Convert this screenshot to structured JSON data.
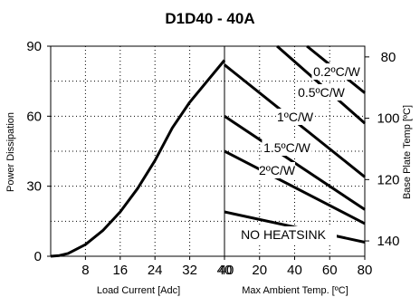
{
  "chart_data": [
    {
      "type": "line",
      "title": "D1D40 - 40A",
      "xlabel": "Load Current  [Adc]",
      "ylabel": "Power Dissipation",
      "xlim": [
        0,
        40
      ],
      "ylim": [
        0,
        90
      ],
      "x_ticks": [
        "8",
        "16",
        "24",
        "32",
        "40"
      ],
      "y_ticks": [
        "0",
        "30",
        "60",
        "90"
      ],
      "grid": true,
      "series": [
        {
          "x": [
            0,
            2,
            4,
            8,
            12,
            16,
            20,
            24,
            28,
            32,
            36,
            40
          ],
          "y": [
            0,
            0.3,
            1.2,
            5,
            11,
            19,
            29,
            41,
            55,
            66,
            75,
            84
          ]
        }
      ]
    },
    {
      "type": "line",
      "xlabel": "Max Ambient Temp. [ºC]",
      "ylabel": "Base Plate Temp [ºC]",
      "xlim": [
        0,
        80
      ],
      "x_ticks": [
        "20",
        "40",
        "60",
        "80"
      ],
      "x_start_label": "40",
      "y2lim": [
        76.5,
        145
      ],
      "y2_ticks": [
        "80",
        "100",
        "120",
        "140"
      ],
      "grid": true,
      "series": [
        {
          "name": "0.2ºC/W",
          "x": [
            47,
            80
          ],
          "y": [
            90,
            70
          ]
        },
        {
          "name": "0.5ºC/W",
          "x": [
            30,
            80
          ],
          "y": [
            90,
            57
          ]
        },
        {
          "name": "1ºC/W",
          "x": [
            0,
            80
          ],
          "y": [
            82,
            34
          ]
        },
        {
          "name": "1.5ºC/W",
          "x": [
            0,
            80
          ],
          "y": [
            60,
            20
          ]
        },
        {
          "name": "2ºC/W",
          "x": [
            0,
            80
          ],
          "y": [
            45,
            14
          ]
        },
        {
          "name": "NO HEATSINK",
          "x": [
            0,
            80
          ],
          "y": [
            19,
            6
          ]
        }
      ]
    }
  ]
}
